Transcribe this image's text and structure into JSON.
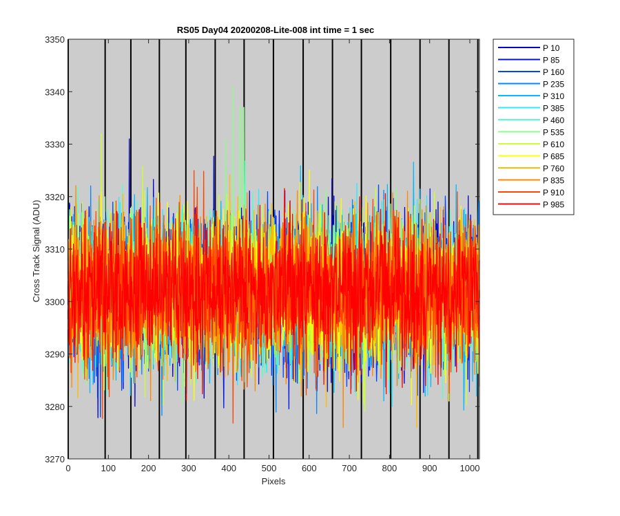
{
  "chart_data": {
    "type": "line",
    "title": "RS05 Day04 20200208-Lite-008 int time = 1 sec",
    "xlabel": "Pixels",
    "ylabel": "Cross Track Signal (ADU)",
    "xlim": [
      0,
      1024
    ],
    "ylim": [
      3270,
      3350
    ],
    "xticks": [
      0,
      100,
      200,
      300,
      400,
      500,
      600,
      700,
      800,
      900,
      1000
    ],
    "yticks": [
      3270,
      3280,
      3290,
      3300,
      3310,
      3320,
      3330,
      3340,
      3350
    ],
    "xtick_labels": [
      "0",
      "100",
      "200",
      "300",
      "400",
      "500",
      "600",
      "700",
      "800",
      "900",
      "1000"
    ],
    "ytick_labels": [
      "3270",
      "3280",
      "3290",
      "3300",
      "3310",
      "3320",
      "3330",
      "3340",
      "3350"
    ],
    "background_color": "#cccccc",
    "vertical_markers": [
      0,
      92,
      156,
      227,
      293,
      366,
      438,
      511,
      585,
      658,
      730,
      803,
      876,
      948,
      1020
    ],
    "legend_position": "outside-right-top",
    "noise": {
      "mean": 3302,
      "sigma": 7,
      "points_per_series": 1024
    },
    "series": [
      {
        "name": "P 10",
        "color": "#0000cc"
      },
      {
        "name": "P 85",
        "color": "#0011ee"
      },
      {
        "name": "P 160",
        "color": "#0044ff"
      },
      {
        "name": "P 235",
        "color": "#0088ff"
      },
      {
        "name": "P 310",
        "color": "#00bbff"
      },
      {
        "name": "P 385",
        "color": "#22eeff"
      },
      {
        "name": "P 460",
        "color": "#55ffcc"
      },
      {
        "name": "P 535",
        "color": "#88ff88"
      },
      {
        "name": "P 610",
        "color": "#ccff33"
      },
      {
        "name": "P 685",
        "color": "#ffff00"
      },
      {
        "name": "P 760",
        "color": "#ffbb00"
      },
      {
        "name": "P 835",
        "color": "#ff8800"
      },
      {
        "name": "P 910",
        "color": "#ff4400"
      },
      {
        "name": "P 985",
        "color": "#ff0000"
      }
    ],
    "spikes": [
      {
        "series": "P 535",
        "x": 410,
        "y": 3341
      },
      {
        "series": "P 535",
        "x": 428,
        "y": 3337
      },
      {
        "series": "P 535",
        "x": 437,
        "y": 3337
      },
      {
        "series": "P 535",
        "x": 392,
        "y": 3331
      },
      {
        "series": "P 610",
        "x": 82,
        "y": 3332
      },
      {
        "series": "P 10",
        "x": 152,
        "y": 3331
      },
      {
        "series": "P 835",
        "x": 685,
        "y": 3276
      },
      {
        "series": "P 160",
        "x": 80,
        "y": 3278
      }
    ]
  }
}
